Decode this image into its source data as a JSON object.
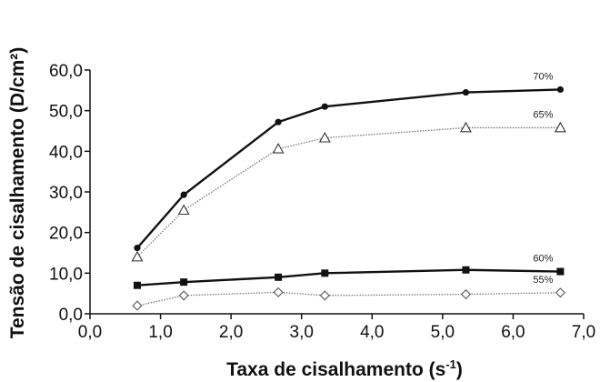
{
  "chart_data": {
    "type": "line",
    "xlabel_main": "Taxa de cisalhamento (s",
    "xlabel_sup": "-1",
    "xlabel_end": ")",
    "ylabel": "Tensão de cisalhamento (D/cm²)",
    "xlim": [
      0,
      7
    ],
    "ylim": [
      0,
      60
    ],
    "x_ticks": [
      0,
      1,
      2,
      3,
      4,
      5,
      6,
      7
    ],
    "x_tick_labels": [
      "0,0",
      "1,0",
      "2,0",
      "3,0",
      "4,0",
      "5,0",
      "6,0",
      "7,0"
    ],
    "y_ticks": [
      0,
      10,
      20,
      30,
      40,
      50,
      60
    ],
    "y_tick_labels": [
      "0,0",
      "10,0",
      "20,0",
      "30,0",
      "40,0",
      "50,0",
      "60,0"
    ],
    "series": [
      {
        "name": "70%",
        "marker": "filled-circle",
        "line": "solid-thick",
        "color": "#111111",
        "x": [
          0.67,
          1.33,
          2.67,
          3.33,
          5.33,
          6.67
        ],
        "y": [
          16.2,
          29.3,
          47.2,
          51.0,
          54.5,
          55.2
        ]
      },
      {
        "name": "65%",
        "marker": "open-triangle",
        "line": "dotted",
        "color": "#555555",
        "x": [
          0.67,
          1.33,
          2.67,
          3.33,
          5.33,
          6.67
        ],
        "y": [
          14.0,
          25.5,
          40.6,
          43.3,
          45.8,
          45.8
        ]
      },
      {
        "name": "60%",
        "marker": "filled-square",
        "line": "solid-thick",
        "color": "#111111",
        "x": [
          0.67,
          1.33,
          2.67,
          3.33,
          5.33,
          6.67
        ],
        "y": [
          7.0,
          7.8,
          9.0,
          10.0,
          10.8,
          10.4
        ]
      },
      {
        "name": "55%",
        "marker": "open-diamond",
        "line": "dotted",
        "color": "#555555",
        "x": [
          0.67,
          1.33,
          2.67,
          3.33,
          5.33,
          6.67
        ],
        "y": [
          2.0,
          4.5,
          5.3,
          4.5,
          4.8,
          5.2
        ]
      }
    ],
    "grid": false,
    "legend": "inline labels at line ends"
  }
}
